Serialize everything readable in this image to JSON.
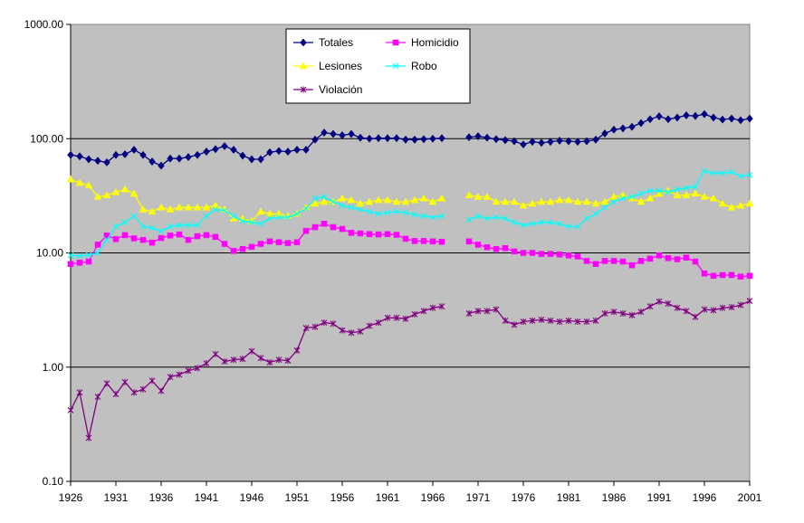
{
  "chart_data": {
    "type": "line",
    "title": "",
    "xlabel": "",
    "ylabel": "",
    "y_scale": "log",
    "ylim": [
      0.1,
      1000
    ],
    "xlim": [
      1926,
      2001
    ],
    "x_tick_labels": [
      "1926",
      "1931",
      "1936",
      "1941",
      "1946",
      "1951",
      "1956",
      "1961",
      "1966",
      "1971",
      "1976",
      "1981",
      "1986",
      "1991",
      "1996",
      "2001"
    ],
    "y_tick_labels": [
      "0.10",
      "1.00",
      "10.00",
      "100.00",
      "1000.00"
    ],
    "grid": "horizontal",
    "legend_position": "top-center",
    "plot_background": "#c0c0c0",
    "series": [
      {
        "name": "Totales",
        "color": "#000080",
        "marker": "diamond",
        "x": [
          1926,
          1927,
          1928,
          1929,
          1930,
          1931,
          1932,
          1933,
          1934,
          1935,
          1936,
          1937,
          1938,
          1939,
          1940,
          1941,
          1942,
          1943,
          1944,
          1945,
          1946,
          1947,
          1948,
          1949,
          1950,
          1951,
          1952,
          1953,
          1954,
          1955,
          1956,
          1957,
          1958,
          1959,
          1960,
          1961,
          1962,
          1963,
          1964,
          1965,
          1966,
          1967,
          1970,
          1971,
          1972,
          1973,
          1974,
          1975,
          1976,
          1977,
          1978,
          1979,
          1980,
          1981,
          1982,
          1983,
          1984,
          1985,
          1986,
          1987,
          1988,
          1989,
          1990,
          1991,
          1992,
          1993,
          1994,
          1995,
          1996,
          1997,
          1998,
          1999,
          2000,
          2001
        ],
        "values": [
          72,
          70,
          66,
          64,
          62,
          72,
          73,
          80,
          72,
          63,
          58,
          67,
          67,
          69,
          72,
          77,
          81,
          86,
          80,
          71,
          66,
          66,
          76,
          78,
          77,
          80,
          80,
          98,
          113,
          110,
          107,
          110,
          102,
          100,
          101,
          101,
          101,
          98,
          98,
          99,
          100,
          101,
          103,
          105,
          102,
          99,
          97,
          95,
          89,
          94,
          92,
          94,
          96,
          95,
          94,
          95,
          98,
          111,
          120,
          123,
          127,
          137,
          148,
          157,
          148,
          153,
          160,
          158,
          164,
          153,
          147,
          150,
          145,
          150
        ]
      },
      {
        "name": "Homicidio",
        "color": "#ff00ff",
        "marker": "square",
        "x": [
          1926,
          1927,
          1928,
          1929,
          1930,
          1931,
          1932,
          1933,
          1934,
          1935,
          1936,
          1937,
          1938,
          1939,
          1940,
          1941,
          1942,
          1943,
          1944,
          1945,
          1946,
          1947,
          1948,
          1949,
          1950,
          1951,
          1952,
          1953,
          1954,
          1955,
          1956,
          1957,
          1958,
          1959,
          1960,
          1961,
          1962,
          1963,
          1964,
          1965,
          1966,
          1967,
          1970,
          1971,
          1972,
          1973,
          1974,
          1975,
          1976,
          1977,
          1978,
          1979,
          1980,
          1981,
          1982,
          1983,
          1984,
          1985,
          1986,
          1987,
          1988,
          1989,
          1990,
          1991,
          1992,
          1993,
          1994,
          1995,
          1996,
          1997,
          1998,
          1999,
          2000,
          2001
        ],
        "values": [
          8.0,
          8.2,
          8.4,
          11.8,
          14.2,
          13.2,
          14.3,
          13.4,
          13.0,
          12.3,
          13.5,
          14.2,
          14.5,
          13.0,
          14.0,
          14.3,
          13.8,
          12.0,
          10.4,
          10.8,
          11.3,
          12.0,
          12.6,
          12.4,
          12.2,
          12.4,
          15.6,
          16.8,
          18.0,
          16.8,
          16.2,
          15.0,
          14.8,
          14.6,
          14.5,
          14.6,
          14.4,
          13.3,
          12.7,
          12.7,
          12.6,
          12.5,
          12.6,
          11.8,
          11.2,
          10.8,
          11.0,
          10.3,
          10.0,
          10.0,
          9.8,
          9.8,
          9.7,
          9.5,
          9.3,
          8.5,
          8.0,
          8.5,
          8.5,
          8.4,
          7.8,
          8.5,
          8.9,
          9.5,
          9.0,
          8.8,
          9.1,
          8.4,
          6.6,
          6.3,
          6.4,
          6.4,
          6.2,
          6.3
        ]
      },
      {
        "name": "Lesiones",
        "color": "#ffff00",
        "marker": "triangle",
        "x": [
          1926,
          1927,
          1928,
          1929,
          1930,
          1931,
          1932,
          1933,
          1934,
          1935,
          1936,
          1937,
          1938,
          1939,
          1940,
          1941,
          1942,
          1943,
          1944,
          1945,
          1946,
          1947,
          1948,
          1949,
          1950,
          1951,
          1952,
          1953,
          1954,
          1955,
          1956,
          1957,
          1958,
          1959,
          1960,
          1961,
          1962,
          1963,
          1964,
          1965,
          1966,
          1967,
          1970,
          1971,
          1972,
          1973,
          1974,
          1975,
          1976,
          1977,
          1978,
          1979,
          1980,
          1981,
          1982,
          1983,
          1984,
          1985,
          1986,
          1987,
          1988,
          1989,
          1990,
          1991,
          1992,
          1993,
          1994,
          1995,
          1996,
          1997,
          1998,
          1999,
          2000,
          2001
        ],
        "values": [
          44,
          41,
          39,
          31,
          32,
          34,
          36,
          33,
          24,
          23,
          25,
          24,
          25,
          25,
          25,
          25,
          26,
          24,
          20,
          20,
          19,
          23,
          22,
          22,
          21,
          22,
          25,
          27,
          28,
          28,
          30,
          29,
          27,
          28,
          29,
          29,
          28,
          28,
          29,
          30,
          28,
          30,
          32,
          31,
          31,
          28,
          28,
          28,
          26,
          27,
          28,
          28,
          29,
          29,
          28,
          28,
          27,
          28,
          31,
          32,
          30,
          28,
          30,
          33,
          35,
          32,
          32,
          33,
          31,
          30,
          27,
          25,
          26,
          27
        ]
      },
      {
        "name": "Robo",
        "color": "#00ffff",
        "marker": "x",
        "x": [
          1926,
          1927,
          1928,
          1929,
          1930,
          1931,
          1932,
          1933,
          1934,
          1935,
          1936,
          1937,
          1938,
          1939,
          1940,
          1941,
          1942,
          1943,
          1944,
          1945,
          1946,
          1947,
          1948,
          1949,
          1950,
          1951,
          1952,
          1953,
          1954,
          1955,
          1956,
          1957,
          1958,
          1959,
          1960,
          1961,
          1962,
          1963,
          1964,
          1965,
          1966,
          1967,
          1970,
          1971,
          1972,
          1973,
          1974,
          1975,
          1976,
          1977,
          1978,
          1979,
          1980,
          1981,
          1982,
          1983,
          1984,
          1985,
          1986,
          1987,
          1988,
          1989,
          1990,
          1991,
          1992,
          1993,
          1994,
          1995,
          1996,
          1997,
          1998,
          1999,
          2000,
          2001
        ],
        "values": [
          9.5,
          9.4,
          9.6,
          10.0,
          13.0,
          17.0,
          18.5,
          21.0,
          17.0,
          16.5,
          15.5,
          17.0,
          17.5,
          17.5,
          17.5,
          21.0,
          24.0,
          23.5,
          21.0,
          19.0,
          18.5,
          18.0,
          20.0,
          20.5,
          20.5,
          22.0,
          24.5,
          30.0,
          31.0,
          28.0,
          26.0,
          25.0,
          24.0,
          23.0,
          22.0,
          22.5,
          23.0,
          22.5,
          21.5,
          21.0,
          20.5,
          21.0,
          19.5,
          21.0,
          20.0,
          20.5,
          20.0,
          18.5,
          17.5,
          18.0,
          18.5,
          18.5,
          18.0,
          17.0,
          17.0,
          20.0,
          22.0,
          25.0,
          28.0,
          30.0,
          31.0,
          33.0,
          35.0,
          35.0,
          34.0,
          36.0,
          37.0,
          38.0,
          52.0,
          50.0,
          50.0,
          51.0,
          47.0,
          48.0
        ]
      },
      {
        "name": "Violación",
        "color": "#800080",
        "marker": "star",
        "x": [
          1926,
          1927,
          1928,
          1929,
          1930,
          1931,
          1932,
          1933,
          1934,
          1935,
          1936,
          1937,
          1938,
          1939,
          1940,
          1941,
          1942,
          1943,
          1944,
          1945,
          1946,
          1947,
          1948,
          1949,
          1950,
          1951,
          1952,
          1953,
          1954,
          1955,
          1956,
          1957,
          1958,
          1959,
          1960,
          1961,
          1962,
          1963,
          1964,
          1965,
          1966,
          1967,
          1970,
          1971,
          1972,
          1973,
          1974,
          1975,
          1976,
          1977,
          1978,
          1979,
          1980,
          1981,
          1982,
          1983,
          1984,
          1985,
          1986,
          1987,
          1988,
          1989,
          1990,
          1991,
          1992,
          1993,
          1994,
          1995,
          1996,
          1997,
          1998,
          1999,
          2000,
          2001
        ],
        "values": [
          0.42,
          0.6,
          0.24,
          0.55,
          0.72,
          0.58,
          0.74,
          0.6,
          0.64,
          0.76,
          0.62,
          0.82,
          0.86,
          0.93,
          0.98,
          1.08,
          1.3,
          1.12,
          1.16,
          1.18,
          1.38,
          1.2,
          1.1,
          1.16,
          1.14,
          1.4,
          2.2,
          2.25,
          2.45,
          2.4,
          2.1,
          2.0,
          2.05,
          2.3,
          2.45,
          2.7,
          2.7,
          2.65,
          2.9,
          3.1,
          3.3,
          3.4,
          2.95,
          3.1,
          3.1,
          3.2,
          2.55,
          2.35,
          2.5,
          2.55,
          2.6,
          2.55,
          2.5,
          2.55,
          2.5,
          2.5,
          2.55,
          2.95,
          3.05,
          2.95,
          2.85,
          3.05,
          3.4,
          3.75,
          3.6,
          3.3,
          3.1,
          2.75,
          3.2,
          3.15,
          3.3,
          3.35,
          3.5,
          3.8
        ]
      }
    ]
  }
}
